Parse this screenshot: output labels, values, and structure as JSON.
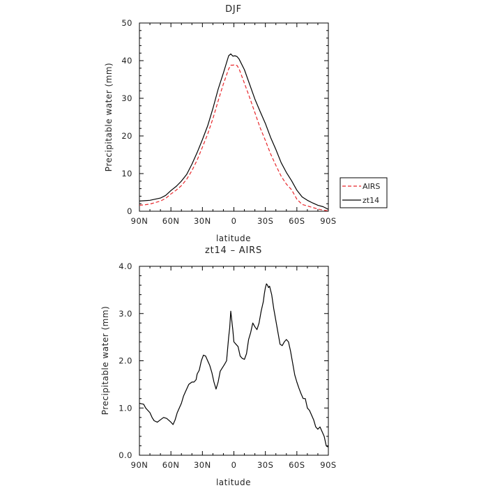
{
  "chart_data": [
    {
      "type": "line",
      "title": "DJF",
      "xlabel": "latitude",
      "ylabel": "Precipitable water (mm)",
      "x_ticks": [
        {
          "value": -90,
          "label": "90N"
        },
        {
          "value": -60,
          "label": "60N"
        },
        {
          "value": -30,
          "label": "30N"
        },
        {
          "value": 0,
          "label": "0"
        },
        {
          "value": 30,
          "label": "30S"
        },
        {
          "value": 60,
          "label": "60S"
        },
        {
          "value": 90,
          "label": "90S"
        }
      ],
      "y_ticks": [
        {
          "value": 0,
          "label": "0"
        },
        {
          "value": 10,
          "label": "10"
        },
        {
          "value": 20,
          "label": "20"
        },
        {
          "value": 30,
          "label": "30"
        },
        {
          "value": 40,
          "label": "40"
        },
        {
          "value": 50,
          "label": "50"
        }
      ],
      "xlim": [
        -90,
        90
      ],
      "ylim": [
        0,
        50
      ],
      "legend_position": "right",
      "series": [
        {
          "name": "AIRS",
          "color": "#e8262a",
          "dash": "dashed",
          "x": [
            -90,
            -85,
            -80,
            -75,
            -70,
            -65,
            -60,
            -55,
            -50,
            -45,
            -40,
            -35,
            -30,
            -25,
            -20,
            -15,
            -10,
            -5,
            -3,
            -1,
            1,
            3,
            5,
            10,
            15,
            20,
            25,
            30,
            35,
            40,
            45,
            50,
            55,
            60,
            65,
            70,
            75,
            80,
            85,
            90
          ],
          "y": [
            1.6,
            1.7,
            1.9,
            2.3,
            2.7,
            3.4,
            4.6,
            5.6,
            6.8,
            8.5,
            10.8,
            13.6,
            17,
            20.5,
            24.6,
            29.3,
            33.8,
            37.8,
            38.8,
            38.8,
            38.9,
            38.7,
            37.8,
            34,
            30.2,
            26.2,
            22.2,
            18.8,
            15.2,
            12.2,
            9.3,
            7.2,
            5.7,
            3.2,
            1.8,
            1.4,
            1,
            0.6,
            0.3,
            0.1
          ]
        },
        {
          "name": "zt14",
          "color": "#000000",
          "dash": "solid",
          "x": [
            -90,
            -85,
            -80,
            -75,
            -70,
            -65,
            -60,
            -55,
            -50,
            -45,
            -40,
            -35,
            -30,
            -25,
            -20,
            -15,
            -10,
            -5,
            -3,
            -1,
            1,
            3,
            5,
            10,
            15,
            20,
            25,
            30,
            35,
            40,
            45,
            50,
            55,
            60,
            65,
            70,
            75,
            80,
            85,
            90
          ],
          "y": [
            2.7,
            2.8,
            2.9,
            3.2,
            3.5,
            4.2,
            5.5,
            6.6,
            8,
            9.8,
            12.5,
            15.6,
            19,
            22.7,
            27.3,
            32.4,
            36.7,
            41.3,
            41.8,
            41.2,
            41.3,
            41.1,
            40.4,
            37.6,
            33.7,
            29.8,
            26.5,
            23.3,
            19.6,
            16.4,
            12.9,
            10.3,
            8.1,
            5.6,
            3.8,
            2.9,
            2.2,
            1.6,
            1.2,
            0.5
          ]
        }
      ],
      "legend": [
        {
          "label": "AIRS",
          "color": "#e8262a",
          "dash": "dashed"
        },
        {
          "label": "zt14",
          "color": "#000000",
          "dash": "solid"
        }
      ]
    },
    {
      "type": "line",
      "title": "zt14 – AIRS",
      "xlabel": "latitude",
      "ylabel": "Precipitable water (mm)",
      "x_ticks": [
        {
          "value": -90,
          "label": "90N"
        },
        {
          "value": -60,
          "label": "60N"
        },
        {
          "value": -30,
          "label": "30N"
        },
        {
          "value": 0,
          "label": "0"
        },
        {
          "value": 30,
          "label": "30S"
        },
        {
          "value": 60,
          "label": "60S"
        },
        {
          "value": 90,
          "label": "90S"
        }
      ],
      "y_ticks": [
        {
          "value": 0,
          "label": "0.0"
        },
        {
          "value": 1,
          "label": "1.0"
        },
        {
          "value": 2,
          "label": "2.0"
        },
        {
          "value": 3,
          "label": "3.0"
        },
        {
          "value": 4,
          "label": "4.0"
        }
      ],
      "xlim": [
        -90,
        90
      ],
      "ylim": [
        0,
        4
      ],
      "series": [
        {
          "name": "zt14 – AIRS",
          "color": "#000000",
          "dash": "solid",
          "x": [
            -90,
            -88,
            -86,
            -84,
            -82,
            -80,
            -78,
            -76,
            -73,
            -70,
            -67,
            -64,
            -62,
            -60,
            -58,
            -56,
            -54,
            -52,
            -50,
            -48,
            -46,
            -43,
            -40,
            -38,
            -36,
            -35,
            -33,
            -31,
            -29,
            -27,
            -25,
            -23,
            -21,
            -19,
            -17,
            -15,
            -13,
            -11,
            -9,
            -7,
            -5,
            -4,
            -3,
            -2,
            -1,
            0,
            2,
            4,
            6,
            8,
            10,
            12,
            14,
            16,
            18,
            20,
            22,
            24,
            26,
            28,
            29,
            30,
            31,
            32,
            33,
            34,
            36,
            38,
            40,
            42,
            44,
            46,
            48,
            50,
            52,
            54,
            56,
            58,
            60,
            62,
            64,
            66,
            68,
            70,
            72,
            74,
            76,
            78,
            80,
            82,
            84,
            86,
            87,
            88,
            89,
            90
          ],
          "y": [
            1.1,
            1.09,
            1.08,
            1.0,
            0.95,
            0.9,
            0.8,
            0.73,
            0.7,
            0.75,
            0.8,
            0.78,
            0.74,
            0.7,
            0.65,
            0.75,
            0.9,
            1.0,
            1.1,
            1.25,
            1.35,
            1.5,
            1.55,
            1.55,
            1.6,
            1.72,
            1.8,
            2.0,
            2.12,
            2.1,
            2.0,
            1.9,
            1.75,
            1.55,
            1.4,
            1.55,
            1.78,
            1.85,
            1.92,
            2.0,
            2.5,
            2.7,
            3.05,
            2.85,
            2.65,
            2.4,
            2.35,
            2.3,
            2.1,
            2.05,
            2.03,
            2.15,
            2.45,
            2.6,
            2.8,
            2.72,
            2.66,
            2.8,
            3.05,
            3.25,
            3.42,
            3.55,
            3.63,
            3.6,
            3.55,
            3.58,
            3.4,
            3.1,
            2.85,
            2.6,
            2.35,
            2.32,
            2.4,
            2.45,
            2.4,
            2.2,
            1.95,
            1.7,
            1.55,
            1.42,
            1.3,
            1.2,
            1.2,
            1.0,
            0.95,
            0.85,
            0.75,
            0.6,
            0.55,
            0.6,
            0.5,
            0.4,
            0.3,
            0.2,
            0.18,
            0.18
          ]
        }
      ]
    }
  ]
}
